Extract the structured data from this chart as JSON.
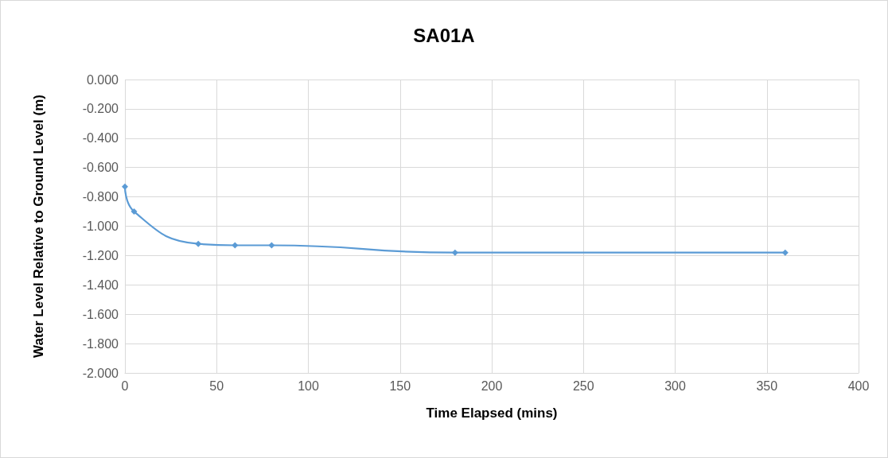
{
  "chart_data": {
    "type": "line",
    "title": "SA01A",
    "xlabel": "Time Elapsed (mins)",
    "ylabel": "Water Level Relative to Ground Level (m)",
    "x": [
      0,
      5,
      40,
      60,
      80,
      180,
      360
    ],
    "series": [
      {
        "color": "#5b9bd5",
        "values": [
          -0.73,
          -0.9,
          -1.12,
          -1.13,
          -1.13,
          -1.18,
          -1.18
        ]
      }
    ],
    "xlim": [
      0,
      400
    ],
    "xticks": [
      0,
      50,
      100,
      150,
      200,
      250,
      300,
      350,
      400
    ],
    "ylim": [
      -2,
      0
    ],
    "yticks": [
      {
        "value": 0,
        "label": "0.000"
      },
      {
        "value": -0.2,
        "label": "-0.200"
      },
      {
        "value": -0.4,
        "label": "-0.400"
      },
      {
        "value": -0.6,
        "label": "-0.600"
      },
      {
        "value": -0.8,
        "label": "-0.800"
      },
      {
        "value": -1,
        "label": "-1.000"
      },
      {
        "value": -1.2,
        "label": "-1.200"
      },
      {
        "value": -1.4,
        "label": "-1.400"
      },
      {
        "value": -1.6,
        "label": "-1.600"
      },
      {
        "value": -1.8,
        "label": "-1.800"
      },
      {
        "value": -2,
        "label": "-2.000"
      }
    ],
    "grid": true,
    "marker": "diamond",
    "line_style": "solid"
  }
}
